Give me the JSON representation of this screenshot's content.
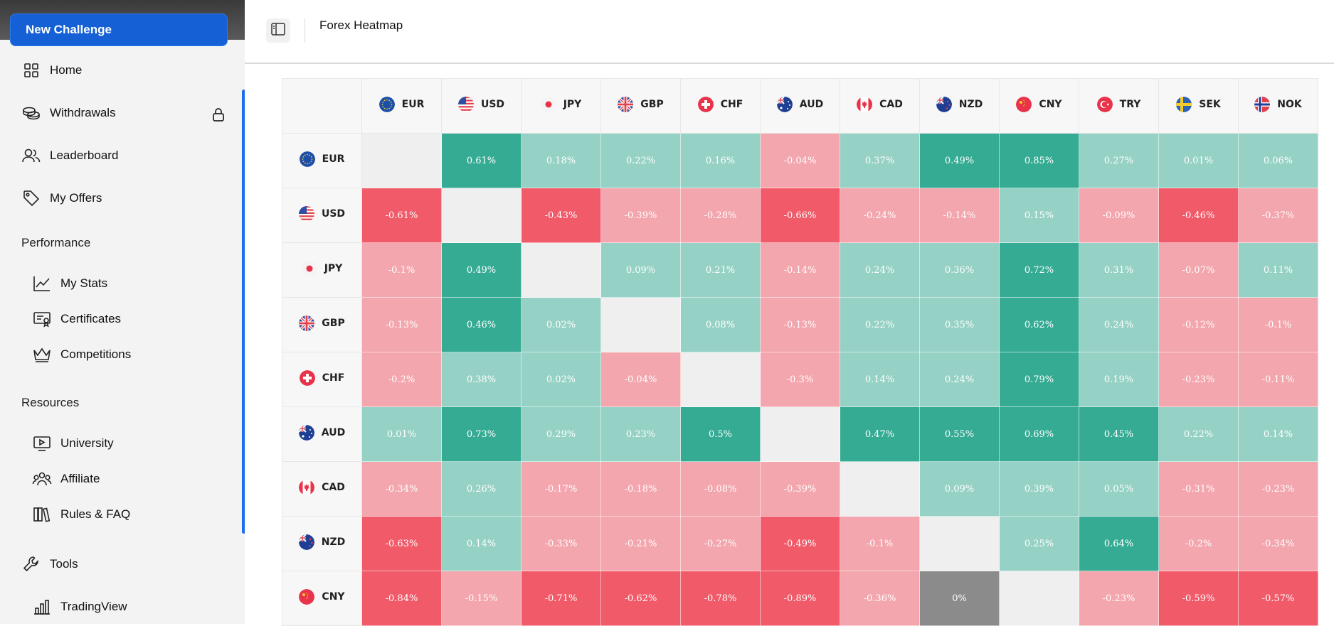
{
  "sidebar": {
    "cta_label": "New Challenge",
    "top_items": [
      {
        "label": "Home",
        "icon": "grid-icon"
      },
      {
        "label": "Withdrawals",
        "icon": "coins-icon"
      },
      {
        "label": "Leaderboard",
        "icon": "users-icon"
      },
      {
        "label": "My Offers",
        "icon": "tag-icon"
      }
    ],
    "performance_label": "Performance",
    "performance_items": [
      {
        "label": "My Stats",
        "icon": "chart-line-icon"
      },
      {
        "label": "Certificates",
        "icon": "certificate-icon"
      },
      {
        "label": "Competitions",
        "icon": "crown-icon"
      }
    ],
    "resources_label": "Resources",
    "resources_items": [
      {
        "label": "University",
        "icon": "play-icon"
      },
      {
        "label": "Affiliate",
        "icon": "people-icon"
      },
      {
        "label": "Rules & FAQ",
        "icon": "books-icon"
      }
    ],
    "tools_label": "Tools",
    "tools_items": [
      {
        "label": "TradingView",
        "icon": "bar-chart-icon"
      }
    ]
  },
  "header": {
    "title": "Forex Heatmap"
  },
  "heatmap": {
    "columns": [
      "EUR",
      "USD",
      "JPY",
      "GBP",
      "CHF",
      "AUD",
      "CAD",
      "NZD",
      "CNY",
      "TRY",
      "SEK",
      "NOK"
    ],
    "rows": [
      {
        "currency": "EUR",
        "values": [
          "",
          "0.61%",
          "0.18%",
          "0.22%",
          "0.16%",
          "-0.04%",
          "0.37%",
          "0.49%",
          "0.85%",
          "0.27%",
          "0.01%",
          "0.06%"
        ]
      },
      {
        "currency": "USD",
        "values": [
          "-0.61%",
          "",
          "-0.43%",
          "-0.39%",
          "-0.28%",
          "-0.66%",
          "-0.24%",
          "-0.14%",
          "0.15%",
          "-0.09%",
          "-0.46%",
          "-0.37%"
        ]
      },
      {
        "currency": "JPY",
        "values": [
          "-0.1%",
          "0.49%",
          "",
          "0.09%",
          "0.21%",
          "-0.14%",
          "0.24%",
          "0.36%",
          "0.72%",
          "0.31%",
          "-0.07%",
          "0.11%"
        ]
      },
      {
        "currency": "GBP",
        "values": [
          "-0.13%",
          "0.46%",
          "0.02%",
          "",
          "0.08%",
          "-0.13%",
          "0.22%",
          "0.35%",
          "0.62%",
          "0.24%",
          "-0.12%",
          "-0.1%"
        ]
      },
      {
        "currency": "CHF",
        "values": [
          "-0.2%",
          "0.38%",
          "0.02%",
          "-0.04%",
          "",
          "-0.3%",
          "0.14%",
          "0.24%",
          "0.79%",
          "0.19%",
          "-0.23%",
          "-0.11%"
        ]
      },
      {
        "currency": "AUD",
        "values": [
          "0.01%",
          "0.73%",
          "0.29%",
          "0.23%",
          "0.5%",
          "",
          "0.47%",
          "0.55%",
          "0.69%",
          "0.45%",
          "0.22%",
          "0.14%"
        ]
      },
      {
        "currency": "CAD",
        "values": [
          "-0.34%",
          "0.26%",
          "-0.17%",
          "-0.18%",
          "-0.08%",
          "-0.39%",
          "",
          "0.09%",
          "0.39%",
          "0.05%",
          "-0.31%",
          "-0.23%"
        ]
      },
      {
        "currency": "NZD",
        "values": [
          "-0.63%",
          "0.14%",
          "-0.33%",
          "-0.21%",
          "-0.27%",
          "-0.49%",
          "-0.1%",
          "",
          "0.25%",
          "0.64%",
          "-0.2%",
          "-0.34%"
        ]
      },
      {
        "currency": "CNY",
        "values": [
          "-0.84%",
          "-0.15%",
          "-0.71%",
          "-0.62%",
          "-0.78%",
          "-0.89%",
          "-0.36%",
          "0%",
          "",
          "-0.23%",
          "-0.59%",
          "-0.57%"
        ]
      }
    ],
    "colors": {
      "strong_positive": "#35ab94",
      "positive": "#96d1c5",
      "strong_negative": "#f15a69",
      "negative": "#f3a6ad",
      "neutral": "#8b8b8b",
      "diagonal": "#efefef"
    }
  }
}
